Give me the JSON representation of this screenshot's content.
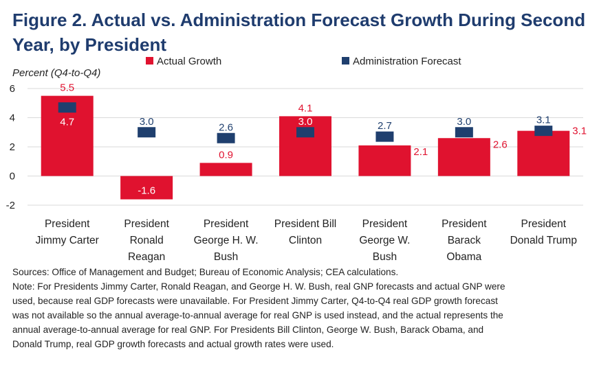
{
  "chart_data": {
    "type": "bar",
    "title": [
      "Figure 2. Actual vs. Administration Forecast Growth During Second",
      "Year, by President"
    ],
    "y_axis_label": "Percent (Q4-to-Q4)",
    "categories": [
      "President\nJimmy Carter",
      "President\nRonald\nReagan",
      "President\nGeorge H. W.\nBush",
      "President Bill\nClinton",
      "President\nGeorge W.\nBush",
      "President\nBarack\nObama",
      "President\nDonald Trump"
    ],
    "series": [
      {
        "name": "Actual Growth",
        "color": "#e0122f",
        "values": [
          5.5,
          -1.6,
          0.9,
          4.1,
          2.1,
          2.6,
          3.1
        ],
        "value_labels": [
          "5.5",
          "-1.6",
          "0.9",
          "4.1",
          "2.1",
          "2.6",
          "3.1"
        ]
      },
      {
        "name": "Administration Forecast",
        "color": "#1f3f6e",
        "values": [
          4.7,
          3.0,
          2.6,
          3.0,
          2.7,
          3.0,
          3.1
        ],
        "value_labels": [
          "4.7",
          "3.0",
          "2.6",
          "3.0",
          "2.7",
          "3.0",
          "3.1"
        ]
      }
    ],
    "ylim": [
      -2,
      6
    ],
    "yticks": [
      -2,
      0,
      2,
      4,
      6
    ],
    "grid": true,
    "notes": [
      "Sources: Office of Management and Budget; Bureau of Economic Analysis; CEA calculations.",
      "Note: For Presidents Jimmy Carter, Ronald Reagan, and George H. W. Bush, real GNP forecasts and actual GNP were",
      "used, because real GDP forecasts were unavailable. For President Jimmy Carter, Q4-to-Q4 real GDP growth forecast",
      "was not available so the annual average-to-annual average for real GNP is used instead, and the actual represents the",
      "annual average-to-annual average for real GNP. For Presidents Bill Clinton, George W. Bush, Barack Obama, and",
      "Donald Trump, real GDP growth forecasts and actual growth rates were used."
    ]
  }
}
